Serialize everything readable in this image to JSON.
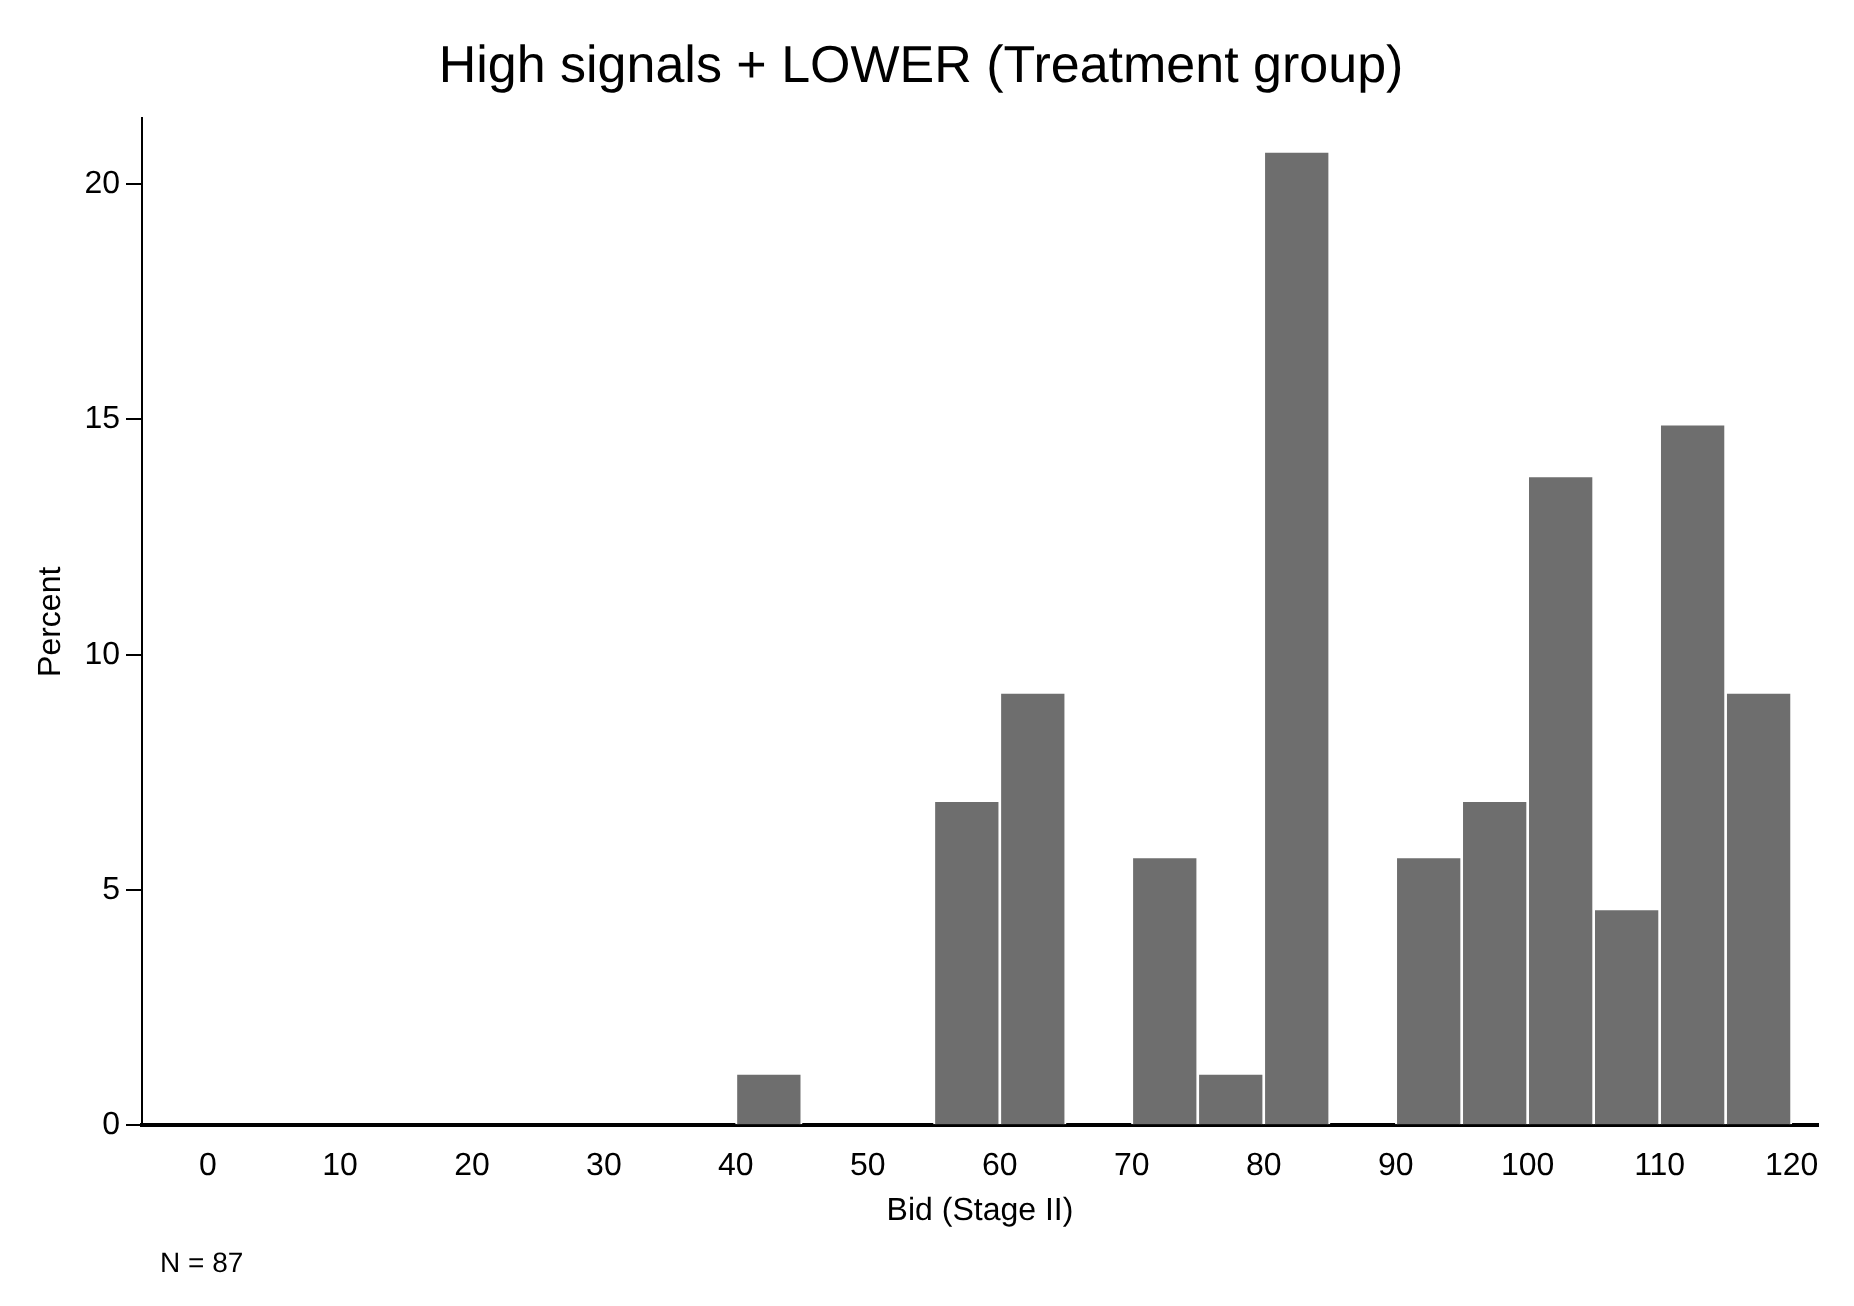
{
  "chart_data": {
    "type": "histogram",
    "title": "High signals + LOWER (Treatment group)",
    "xlabel": "Bid (Stage II)",
    "ylabel": "Percent",
    "bins": [
      0,
      5,
      10,
      15,
      20,
      25,
      30,
      35,
      40,
      45,
      50,
      55,
      60,
      65,
      70,
      75,
      80,
      85,
      90,
      95,
      100,
      105,
      110,
      115,
      120
    ],
    "values": [
      0,
      0,
      0,
      0,
      0,
      0,
      0,
      0,
      1.1,
      0,
      0,
      6.9,
      9.2,
      0,
      5.7,
      1.1,
      20.7,
      0,
      5.7,
      6.9,
      13.8,
      4.6,
      14.9,
      9.2
    ],
    "color": "#6e6e6e",
    "xlim": [
      -5,
      122
    ],
    "xticks": [
      0,
      10,
      20,
      30,
      40,
      50,
      60,
      70,
      80,
      90,
      100,
      110,
      120
    ],
    "ylim": [
      0,
      21.4
    ],
    "yticks": [
      0,
      5,
      10,
      15,
      20
    ],
    "grid": false,
    "legend": false,
    "annotations": [
      "N = 87"
    ]
  }
}
